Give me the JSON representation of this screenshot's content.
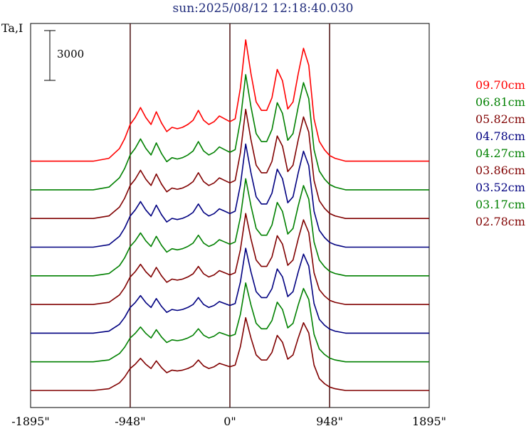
{
  "title": "sun:2025/08/12 12:18:40.030",
  "chart_data": {
    "type": "line",
    "ylabel": "Ta,I",
    "scale_bar_label": "3000",
    "scale_bar_value": 3000,
    "x_ticks": [
      "-1895\"",
      "-948\"",
      "0\"",
      "948\"",
      "1895\""
    ],
    "xlim": [
      -1895,
      1895
    ],
    "vertical_lines_x": [
      -948,
      0,
      948
    ],
    "series": [
      {
        "name": "09.70cm",
        "color": "#ff0000"
      },
      {
        "name": "06.81cm",
        "color": "#008000"
      },
      {
        "name": "05.82cm",
        "color": "#800000"
      },
      {
        "name": "04.78cm",
        "color": "#000080"
      },
      {
        "name": "04.27cm",
        "color": "#008000"
      },
      {
        "name": "03.86cm",
        "color": "#800000"
      },
      {
        "name": "03.52cm",
        "color": "#000080"
      },
      {
        "name": "03.17cm",
        "color": "#008000"
      },
      {
        "name": "02.78cm",
        "color": "#800000"
      }
    ],
    "x": [
      -1895,
      -1700,
      -1500,
      -1300,
      -1150,
      -1050,
      -1000,
      -948,
      -900,
      -850,
      -800,
      -750,
      -700,
      -650,
      -600,
      -550,
      -500,
      -450,
      -400,
      -350,
      -300,
      -250,
      -200,
      -150,
      -100,
      -50,
      0,
      50,
      100,
      150,
      200,
      250,
      300,
      350,
      400,
      450,
      500,
      550,
      600,
      650,
      700,
      750,
      800,
      850,
      900,
      948,
      1000,
      1050,
      1100,
      1200,
      1300,
      1400,
      1500,
      1600,
      1700,
      1895
    ],
    "profiles": [
      [
        0,
        0,
        0,
        0,
        200,
        900,
        1600,
        2600,
        3100,
        3800,
        3100,
        2600,
        3500,
        2700,
        2100,
        2400,
        2300,
        2400,
        2600,
        2900,
        3600,
        2900,
        2600,
        2800,
        3200,
        3000,
        2800,
        3000,
        5200,
        8600,
        6200,
        4200,
        3600,
        3600,
        4500,
        6500,
        5700,
        3700,
        4200,
        6200,
        8000,
        6800,
        3000,
        1400,
        800,
        400,
        200,
        100,
        0,
        0,
        0,
        0,
        0,
        0,
        0,
        0
      ]
    ]
  }
}
